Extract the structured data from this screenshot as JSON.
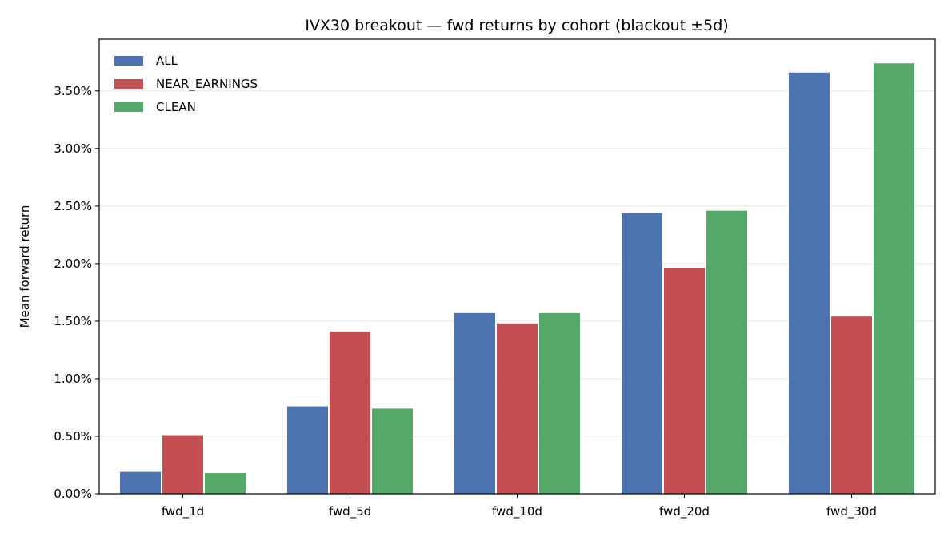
{
  "chart_data": {
    "type": "bar",
    "title": "IVX30 breakout — fwd returns by cohort (blackout ±5d)",
    "xlabel": "",
    "ylabel": "Mean forward return",
    "categories": [
      "fwd_1d",
      "fwd_5d",
      "fwd_10d",
      "fwd_20d",
      "fwd_30d"
    ],
    "series": [
      {
        "name": "ALL",
        "color": "#4c72b0",
        "values": [
          0.0019,
          0.0076,
          0.0157,
          0.0244,
          0.0366
        ]
      },
      {
        "name": "NEAR_EARNINGS",
        "color": "#c44e52",
        "values": [
          0.0051,
          0.0141,
          0.0148,
          0.0196,
          0.0154
        ]
      },
      {
        "name": "CLEAN",
        "color": "#55a868",
        "values": [
          0.0018,
          0.0074,
          0.0157,
          0.0246,
          0.0374
        ]
      }
    ],
    "ylim": [
      0,
      0.0395
    ],
    "yticks": [
      0,
      0.005,
      0.01,
      0.015,
      0.02,
      0.025,
      0.03,
      0.035
    ],
    "ytick_labels": [
      "0.00%",
      "0.50%",
      "1.00%",
      "1.50%",
      "2.00%",
      "2.50%",
      "3.00%",
      "3.50%"
    ],
    "grid": "horizontal",
    "legend_position": "top-left"
  }
}
